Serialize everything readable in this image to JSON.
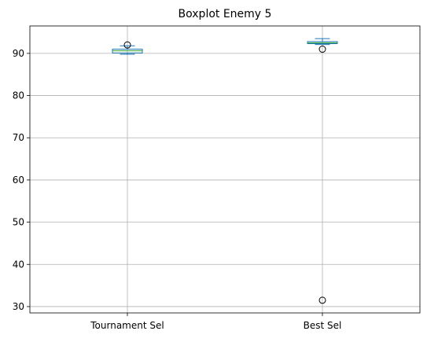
{
  "chart_data": {
    "type": "box",
    "title": "Boxplot Enemy 5",
    "xlabel": "",
    "ylabel": "",
    "categories": [
      "Tournament Sel",
      "Best Sel"
    ],
    "ylim": [
      28.5,
      96.5
    ],
    "yticks": [
      30,
      40,
      50,
      60,
      70,
      80,
      90
    ],
    "grid": true,
    "series": [
      {
        "whisker_low": 89.8,
        "q1": 90.1,
        "median": 90.6,
        "q3": 91.0,
        "whisker_high": 91.8,
        "outliers": [
          92.0
        ]
      },
      {
        "whisker_low": 92.1,
        "q1": 92.3,
        "median": 92.5,
        "q3": 92.8,
        "whisker_high": 93.5,
        "outliers": [
          91.0,
          31.5
        ]
      }
    ],
    "colors": {
      "box": "#1f77b4",
      "median": "#2ca02c",
      "outlier": "#000000",
      "grid": "#b0b0b0"
    }
  }
}
